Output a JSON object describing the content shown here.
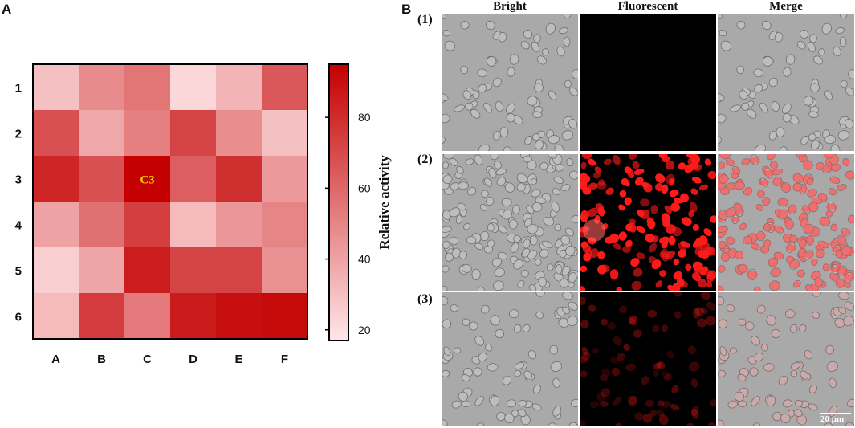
{
  "panels": {
    "a_letter": "A",
    "b_letter": "B"
  },
  "chart_data": {
    "type": "heatmap",
    "columns": [
      "A",
      "B",
      "C",
      "D",
      "E",
      "F"
    ],
    "rows": [
      "1",
      "2",
      "3",
      "4",
      "5",
      "6"
    ],
    "values": [
      [
        30,
        48,
        55,
        22,
        34,
        65
      ],
      [
        68,
        38,
        52,
        72,
        47,
        30
      ],
      [
        82,
        68,
        95,
        63,
        79,
        43
      ],
      [
        40,
        57,
        74,
        32,
        44,
        50
      ],
      [
        25,
        39,
        85,
        72,
        72,
        46
      ],
      [
        32,
        75,
        54,
        86,
        90,
        92
      ]
    ],
    "highlight": {
      "row": 2,
      "col": 2,
      "label": "C3",
      "label_color": "#f5d000"
    },
    "colorbar": {
      "label": "Relative activity",
      "ticks": [
        20,
        40,
        60,
        80
      ],
      "range": [
        17,
        95
      ]
    },
    "colors": {
      "low": "#ffe6e9",
      "high": "#c40000"
    }
  },
  "microscopy": {
    "columns": [
      "Bright",
      "Fluorescent",
      "Merge"
    ],
    "rows": [
      "(1)",
      "(2)",
      "(3)"
    ],
    "fluorescence_levels": [
      0.02,
      1.0,
      0.25
    ],
    "scale_bar": "20 μm"
  }
}
